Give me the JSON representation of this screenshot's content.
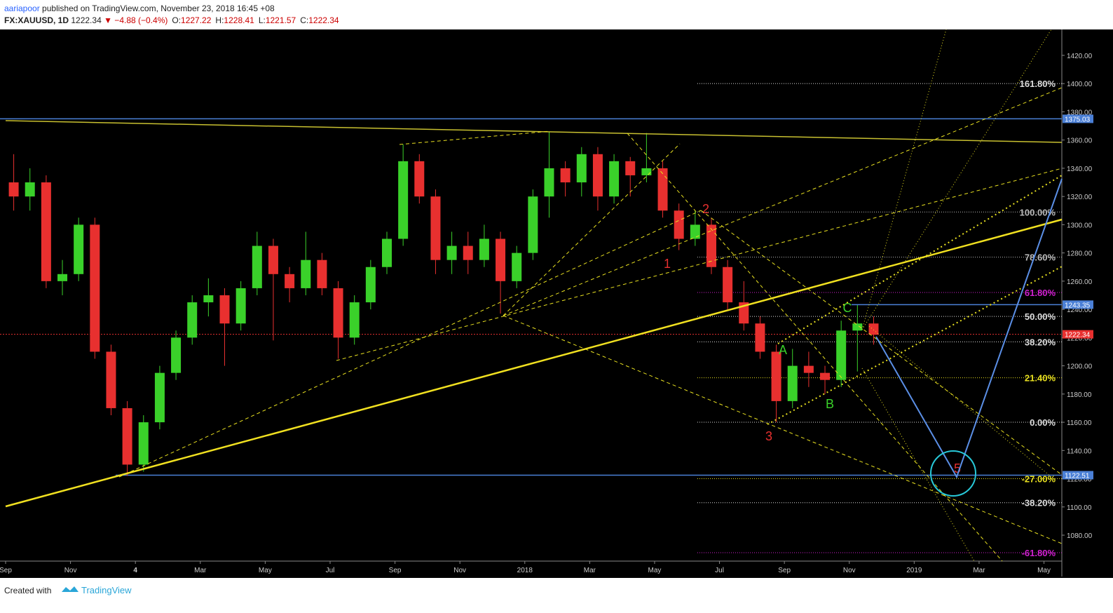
{
  "header": {
    "author": "aariapoor",
    "published": "published on TradingView.com, November 23, 2018 16:45 +08",
    "symbol": "FX:XAUUSD, 1D",
    "last": "1222.34",
    "change": "▼ −4.88 (−0.4%)",
    "ohlc": [
      {
        "label": "O:",
        "value": "1227.22"
      },
      {
        "label": "H:",
        "value": "1228.41"
      },
      {
        "label": "L:",
        "value": "1221.57"
      },
      {
        "label": "C:",
        "value": "1222.34"
      }
    ]
  },
  "footer": {
    "created": "Created with",
    "brand": "TradingView"
  },
  "chart_data": {
    "type": "candlestick",
    "up_color": "#3ad12a",
    "down_color": "#e8302f",
    "x": [
      0.25,
      0.75,
      1.25,
      1.75,
      2.25,
      2.75,
      3.25,
      3.75,
      4.25,
      4.75,
      5.25,
      5.75,
      6.25,
      6.75,
      7.25,
      7.75,
      8.25,
      8.75,
      9.25,
      9.75,
      10.25,
      10.75,
      11.25,
      11.75,
      12.25,
      12.75,
      13.25,
      13.75,
      14.25,
      14.75,
      15.25,
      15.75,
      16.25,
      16.75,
      17.25,
      17.75,
      18.25,
      18.75,
      19.25,
      19.75,
      20.25,
      20.75,
      21.25,
      21.75,
      22.25,
      22.75,
      23.25,
      23.75,
      24.25,
      24.75,
      25.25,
      25.75,
      26.25,
      26.75
    ],
    "open": [
      1330,
      1320,
      1330,
      1260,
      1265,
      1300,
      1210,
      1170,
      1130,
      1160,
      1195,
      1220,
      1245,
      1250,
      1230,
      1255,
      1285,
      1265,
      1255,
      1275,
      1255,
      1220,
      1245,
      1270,
      1290,
      1345,
      1320,
      1275,
      1285,
      1275,
      1290,
      1260,
      1280,
      1320,
      1340,
      1330,
      1350,
      1320,
      1345,
      1335,
      1340,
      1310,
      1290,
      1300,
      1270,
      1245,
      1230,
      1210,
      1175,
      1200,
      1195,
      1190,
      1225,
      1230
    ],
    "high": [
      1350,
      1340,
      1335,
      1275,
      1305,
      1305,
      1215,
      1175,
      1165,
      1200,
      1225,
      1250,
      1262,
      1255,
      1260,
      1295,
      1290,
      1270,
      1295,
      1280,
      1260,
      1250,
      1275,
      1295,
      1357,
      1350,
      1325,
      1295,
      1295,
      1300,
      1295,
      1285,
      1325,
      1366,
      1345,
      1355,
      1355,
      1350,
      1348,
      1365,
      1345,
      1315,
      1310,
      1305,
      1275,
      1260,
      1235,
      1215,
      1212,
      1210,
      1200,
      1232,
      1243,
      1235
    ],
    "low": [
      1310,
      1310,
      1255,
      1250,
      1260,
      1205,
      1165,
      1122,
      1125,
      1155,
      1190,
      1215,
      1235,
      1200,
      1225,
      1250,
      1218,
      1245,
      1250,
      1250,
      1205,
      1215,
      1240,
      1265,
      1285,
      1315,
      1265,
      1265,
      1265,
      1270,
      1237,
      1255,
      1275,
      1305,
      1320,
      1320,
      1310,
      1315,
      1320,
      1330,
      1305,
      1282,
      1285,
      1265,
      1240,
      1225,
      1205,
      1160,
      1170,
      1185,
      1180,
      1185,
      1196,
      1215
    ],
    "close": [
      1320,
      1330,
      1260,
      1265,
      1300,
      1210,
      1170,
      1130,
      1160,
      1195,
      1220,
      1245,
      1250,
      1230,
      1255,
      1285,
      1265,
      1255,
      1275,
      1255,
      1220,
      1245,
      1270,
      1290,
      1345,
      1320,
      1275,
      1285,
      1275,
      1290,
      1260,
      1280,
      1320,
      1340,
      1330,
      1350,
      1320,
      1345,
      1335,
      1340,
      1310,
      1290,
      1300,
      1270,
      1245,
      1230,
      1210,
      1175,
      1200,
      1195,
      1190,
      1225,
      1230,
      1222
    ],
    "xlim": [
      0,
      32.55
    ],
    "xticks": [
      {
        "value": 0,
        "label": "Sep"
      },
      {
        "value": 2,
        "label": "Nov"
      },
      4,
      {
        "value": 6,
        "label": "Mar"
      },
      {
        "value": 8,
        "label": "May"
      },
      {
        "value": 10,
        "label": "Jul"
      },
      {
        "value": 12,
        "label": "Sep"
      },
      {
        "value": 14,
        "label": "Nov"
      },
      {
        "value": 16,
        "label": "2018"
      },
      {
        "value": 18,
        "label": "Mar"
      },
      {
        "value": 20,
        "label": "May"
      },
      {
        "value": 22,
        "label": "Jul"
      },
      {
        "value": 24,
        "label": "Sep"
      },
      {
        "value": 26,
        "label": "Nov"
      },
      {
        "value": 28,
        "label": "2019"
      },
      {
        "value": 30,
        "label": "Mar"
      },
      {
        "value": 32,
        "label": "May"
      }
    ],
    "ylim": [
      1061.62,
      1438.36
    ],
    "yticks": [
      {
        "value": 1080,
        "label": "1080.00"
      },
      {
        "value": 1100,
        "label": "1100.00"
      },
      {
        "value": 1120,
        "label": "1120.00"
      },
      {
        "value": 1140,
        "label": "1140.00"
      },
      {
        "value": 1160,
        "label": "1160.00"
      },
      {
        "value": 1180,
        "label": "1180.00"
      },
      {
        "value": 1200,
        "label": "1200.00"
      },
      {
        "value": 1220,
        "label": "1220.00"
      },
      {
        "value": 1240,
        "label": "1240.00"
      },
      {
        "value": 1260,
        "label": "1260.00"
      },
      {
        "value": 1280,
        "label": "1280.00"
      },
      {
        "value": 1300,
        "label": "1300.00"
      },
      {
        "value": 1320,
        "label": "1320.00"
      },
      {
        "value": 1340,
        "label": "1340.00"
      },
      {
        "value": 1360,
        "label": "1360.00"
      },
      {
        "value": 1380,
        "label": "1380.00"
      },
      {
        "value": 1400,
        "label": "1400.00"
      },
      {
        "value": 1420,
        "label": "1420.00"
      }
    ],
    "levels": [
      {
        "value": 1375.03,
        "label": "1375.03",
        "color": "#4a7fd6"
      },
      {
        "value": 1243.35,
        "label": "1243.35",
        "color": "#4a7fd6"
      },
      {
        "value": 1222.34,
        "label": "1222.34",
        "color": "#e8302f"
      },
      {
        "value": 1122.51,
        "label": "1122.51",
        "color": "#4a7fd6"
      }
    ],
    "fib": [
      {
        "value": 1400,
        "label": "161.80%",
        "color": "#dddddd"
      },
      {
        "value": 1309,
        "label": "100.00%",
        "color": "#bbbbbb"
      },
      {
        "value": 1277,
        "label": "78.60%",
        "color": "#bbbbbb"
      },
      {
        "value": 1252,
        "label": "61.80%",
        "color": "#d020d0"
      },
      {
        "value": 1235,
        "label": "50.00%",
        "color": "#dddddd"
      },
      {
        "value": 1217,
        "label": "38.20%",
        "color": "#dddddd"
      },
      {
        "value": 1191.5,
        "label": "21.40%",
        "color": "#e8e020"
      },
      {
        "value": 1160,
        "label": "0.00%",
        "color": "#dddddd"
      },
      {
        "value": 1120,
        "label": "-27.00%",
        "color": "#e8e020"
      },
      {
        "value": 1103,
        "label": "-38.20%",
        "color": "#dddddd"
      },
      {
        "value": 1067.6,
        "label": "-61.80%",
        "color": "#d020d0"
      }
    ],
    "annotations": [
      {
        "text": "1",
        "color": "#e8302f"
      },
      {
        "text": "2",
        "color": "#e8302f"
      },
      {
        "text": "3",
        "color": "#e8302f"
      },
      {
        "text": "A",
        "color": "#3ad12a"
      },
      {
        "text": "B",
        "color": "#3ad12a"
      },
      {
        "text": "C",
        "color": "#3ad12a"
      },
      {
        "text": "5",
        "color": "#e8302f"
      }
    ]
  }
}
